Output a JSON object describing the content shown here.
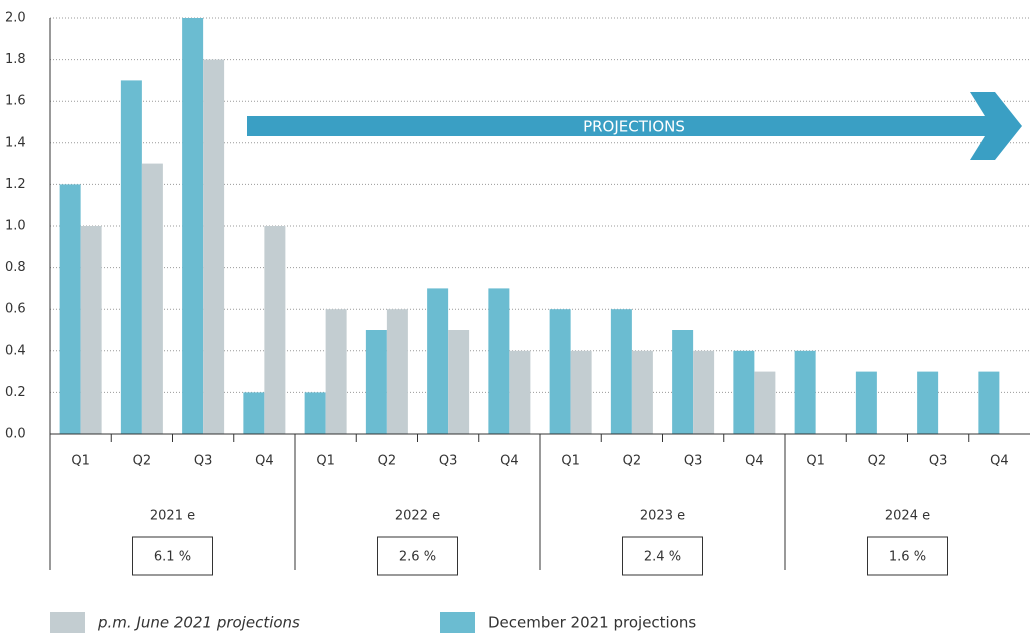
{
  "chart_data": {
    "type": "bar",
    "categories": [
      "Q1",
      "Q2",
      "Q3",
      "Q4",
      "Q1",
      "Q2",
      "Q3",
      "Q4",
      "Q1",
      "Q2",
      "Q3",
      "Q4",
      "Q1",
      "Q2",
      "Q3",
      "Q4"
    ],
    "groups": [
      "2021 e",
      "2022 e",
      "2023 e",
      "2024 e"
    ],
    "annual": {
      "values": [
        6.1,
        2.6,
        2.4,
        1.6
      ],
      "value_labels": [
        "6.1 %",
        "2.6 %",
        "2.4 %",
        "1.6 %"
      ]
    },
    "series": [
      {
        "name": "December 2021 projections",
        "color": "#6bbcd1",
        "values": [
          1.2,
          1.7,
          2.0,
          0.2,
          0.2,
          0.5,
          0.7,
          0.7,
          0.6,
          0.6,
          0.5,
          0.4,
          0.4,
          0.3,
          0.3,
          0.3
        ]
      },
      {
        "name": "p.m. June 2021 projections",
        "color": "#c3cdd1",
        "values": [
          1.0,
          1.3,
          1.8,
          1.0,
          0.6,
          0.6,
          0.5,
          0.4,
          0.4,
          0.4,
          0.4,
          0.3,
          null,
          null,
          null,
          null
        ]
      }
    ],
    "legend_order": [
      1,
      0
    ],
    "annotation": "PROJECTIONS",
    "ylim": [
      0,
      2.0
    ],
    "yticks": [
      {
        "value": 0,
        "label": "0.0"
      },
      0.2,
      0.4,
      0.6,
      0.8,
      {
        "value": 1,
        "label": "1.0"
      },
      1.2,
      1.4,
      1.6,
      1.8,
      {
        "value": 2,
        "label": "2.0"
      }
    ],
    "grid": true
  }
}
